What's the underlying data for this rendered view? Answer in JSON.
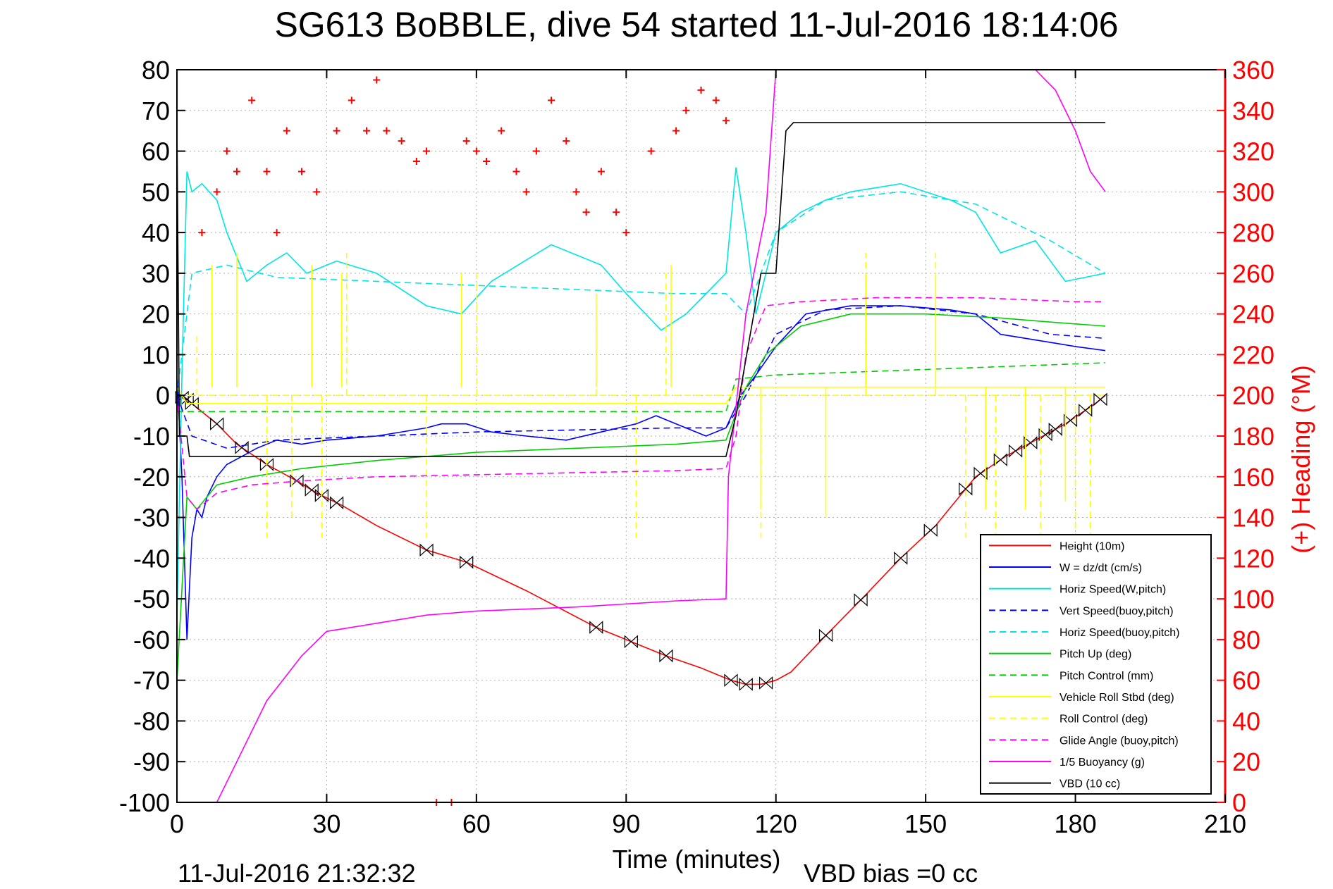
{
  "chart_data": {
    "type": "line",
    "title": "SG613 BoBBLE, dive 54 started 11-Jul-2016 18:14:06",
    "xlabel": "Time (minutes)",
    "ylabel_right": "(+) Heading (°M)",
    "xlim": [
      0,
      210
    ],
    "ylim_left": [
      -100,
      80
    ],
    "ylim_right": [
      0,
      360
    ],
    "x_ticks": [
      0,
      30,
      60,
      90,
      120,
      150,
      180,
      210
    ],
    "y_ticks_left": [
      80,
      70,
      60,
      50,
      40,
      30,
      20,
      10,
      0,
      -10,
      -20,
      -30,
      -40,
      -50,
      -60,
      -70,
      -80,
      -90,
      -100
    ],
    "y_ticks_right": [
      360,
      340,
      320,
      300,
      280,
      260,
      240,
      220,
      200,
      180,
      160,
      140,
      120,
      100,
      80,
      60,
      40,
      20,
      0
    ],
    "grid": true,
    "legend_position": "lower-right",
    "footer_left": "11-Jul-2016 21:32:32",
    "footer_right": "VBD bias =0 cc",
    "legend": [
      {
        "label": "Height (10m)",
        "color": "#ff0000",
        "dash": "solid"
      },
      {
        "label": "W = dz/dt (cm/s)",
        "color": "#0000ff",
        "dash": "solid"
      },
      {
        "label": "Horiz Speed(W,pitch)",
        "color": "#00e5e5",
        "dash": "solid"
      },
      {
        "label": "Vert Speed(buoy,pitch)",
        "color": "#0000ff",
        "dash": "dashed"
      },
      {
        "label": "Horiz Speed(buoy,pitch)",
        "color": "#00e5e5",
        "dash": "dashed"
      },
      {
        "label": "Pitch Up (deg)",
        "color": "#00cc00",
        "dash": "solid"
      },
      {
        "label": "Pitch Control (mm)",
        "color": "#00cc00",
        "dash": "dashed"
      },
      {
        "label": "Vehicle Roll Stbd (deg)",
        "color": "#ffff00",
        "dash": "solid"
      },
      {
        "label": "Roll Control (deg)",
        "color": "#ffff00",
        "dash": "dashed"
      },
      {
        "label": "Glide Angle (buoy,pitch)",
        "color": "#ff00ff",
        "dash": "dashed"
      },
      {
        "label": "1/5 Buoyancy (g)",
        "color": "#ff00ff",
        "dash": "solid"
      },
      {
        "label": "VBD (10 cc)",
        "color": "#000000",
        "dash": "solid"
      }
    ],
    "series": [
      {
        "name": "Height (10m)",
        "axis": "left",
        "x": [
          0,
          2,
          4,
          8,
          12,
          18,
          24,
          28,
          33,
          40,
          50,
          58,
          70,
          84,
          92,
          98,
          105,
          111,
          114,
          117,
          120,
          123,
          130,
          138,
          145,
          152,
          160,
          166,
          172,
          178,
          184,
          186
        ],
        "y": [
          0,
          -1,
          -3,
          -7,
          -12,
          -17,
          -21,
          -24,
          -27,
          -32,
          -38,
          -41,
          -48,
          -57,
          -61,
          -64,
          -67,
          -70,
          -71,
          -71,
          -70,
          -68,
          -59,
          -49,
          -40,
          -32,
          -20,
          -15,
          -11,
          -7,
          -2,
          0
        ],
        "markers_x": [
          1,
          2,
          3,
          8,
          13,
          18,
          24,
          27,
          29,
          32,
          50,
          58,
          84,
          91,
          98,
          111,
          114,
          118,
          130,
          137,
          145,
          151,
          158,
          161,
          165,
          168,
          171,
          174,
          176,
          179,
          182,
          185
        ]
      },
      {
        "name": "W = dz/dt (cm/s)",
        "axis": "left",
        "x": [
          0,
          1,
          2,
          3,
          4,
          5,
          6,
          8,
          10,
          13,
          16,
          20,
          25,
          30,
          40,
          50,
          53,
          58,
          63,
          70,
          78,
          85,
          92,
          96,
          100,
          106,
          110,
          113,
          116,
          120,
          126,
          135,
          145,
          155,
          160,
          165,
          170,
          175,
          180,
          186
        ],
        "y": [
          5,
          -20,
          -60,
          -35,
          -28,
          -30,
          -25,
          -20,
          -17,
          -15,
          -13,
          -11,
          -12,
          -11,
          -10,
          -8,
          -7,
          -7,
          -9,
          -10,
          -11,
          -9,
          -7,
          -5,
          -7,
          -10,
          -8,
          0,
          5,
          12,
          20,
          22,
          22,
          21,
          20,
          15,
          14,
          13,
          12,
          11
        ]
      },
      {
        "name": "Horiz Speed(W,pitch)",
        "axis": "left",
        "x": [
          0,
          1,
          2,
          3,
          5,
          8,
          10,
          14,
          18,
          22,
          26,
          32,
          40,
          50,
          57,
          63,
          75,
          85,
          90,
          97,
          102,
          110,
          112,
          114,
          116,
          120,
          125,
          130,
          135,
          145,
          155,
          160,
          165,
          172,
          178,
          186
        ],
        "y": [
          -55,
          5,
          55,
          50,
          52,
          48,
          40,
          28,
          32,
          35,
          30,
          33,
          30,
          22,
          20,
          28,
          37,
          32,
          25,
          16,
          20,
          30,
          56,
          40,
          20,
          40,
          45,
          48,
          50,
          52,
          48,
          45,
          35,
          38,
          28,
          30
        ]
      },
      {
        "name": "Vert Speed(buoy,pitch)",
        "axis": "left",
        "x": [
          0,
          3,
          10,
          20,
          40,
          60,
          80,
          100,
          110,
          114,
          120,
          130,
          145,
          160,
          175,
          186
        ],
        "y": [
          0,
          -10,
          -13,
          -11,
          -10,
          -9,
          -8.5,
          -8,
          -8,
          0,
          15,
          21,
          22,
          20,
          15,
          14
        ]
      },
      {
        "name": "Horiz Speed(buoy,pitch)",
        "axis": "left",
        "x": [
          0,
          3,
          10,
          20,
          40,
          60,
          80,
          100,
          110,
          114,
          120,
          130,
          145,
          160,
          175,
          186
        ],
        "y": [
          0,
          30,
          32,
          29,
          28,
          27,
          26,
          25,
          25,
          20,
          40,
          48,
          50,
          47,
          38,
          30
        ]
      },
      {
        "name": "Pitch Up (deg)",
        "axis": "left",
        "x": [
          0,
          2,
          4,
          8,
          15,
          25,
          40,
          60,
          80,
          100,
          110,
          114,
          118,
          125,
          135,
          150,
          165,
          175,
          186
        ],
        "y": [
          -70,
          -25,
          -28,
          -22,
          -20,
          -18,
          -16,
          -14,
          -13,
          -12,
          -11,
          2,
          10,
          17,
          20,
          20,
          19,
          18,
          17
        ]
      },
      {
        "name": "Pitch Control (mm)",
        "axis": "left",
        "x": [
          0,
          2,
          110,
          112,
          120,
          186
        ],
        "y": [
          -4,
          -4,
          -4,
          4,
          5,
          8
        ]
      },
      {
        "name": "Vehicle Roll Stbd (deg)",
        "axis": "left",
        "x": [
          0,
          2,
          110,
          112,
          186
        ],
        "y": [
          2,
          -2,
          -2,
          2,
          2
        ],
        "spikes_x": [
          7,
          12,
          27,
          33,
          57,
          84,
          99,
          117,
          130,
          138,
          152,
          162,
          170,
          178
        ],
        "spikes_y": [
          32,
          35,
          32,
          30,
          30,
          25,
          32,
          -28,
          -30,
          30,
          30,
          -28,
          -28,
          -26
        ]
      },
      {
        "name": "Roll Control (deg)",
        "axis": "left",
        "x": [
          0,
          186
        ],
        "y": [
          0,
          0
        ],
        "spikes_x": [
          4,
          18,
          23,
          29,
          34,
          50,
          60,
          84,
          92,
          98,
          117,
          138,
          152,
          158,
          164,
          173,
          180,
          183
        ],
        "spikes_y": [
          15,
          -35,
          -30,
          -35,
          35,
          -35,
          30,
          25,
          -35,
          30,
          -35,
          35,
          35,
          -35,
          -35,
          -35,
          -35,
          -35
        ]
      },
      {
        "name": "Glide Angle (buoy,pitch)",
        "axis": "left",
        "x": [
          0,
          2,
          4,
          8,
          15,
          25,
          40,
          60,
          80,
          100,
          110,
          112,
          114,
          118,
          125,
          140,
          160,
          180,
          186
        ],
        "y": [
          0,
          -25,
          -28,
          -24,
          -22,
          -21,
          -20,
          -19.5,
          -19,
          -18.5,
          -18,
          -10,
          10,
          22,
          23,
          24,
          24,
          23,
          23
        ]
      },
      {
        "name": "1/5 Buoyancy (g)",
        "axis": "left",
        "x": [
          0,
          2,
          5,
          8,
          12,
          18,
          25,
          30,
          40,
          50,
          60,
          80,
          100,
          110,
          110.5,
          114,
          118,
          120,
          124,
          130,
          140,
          150,
          160,
          168,
          172,
          176,
          180,
          183,
          186
        ],
        "y": [
          -100,
          -100,
          -100,
          -100,
          -90,
          -75,
          -64,
          -58,
          -56,
          -54,
          -53,
          -52,
          -50.5,
          -50,
          -20,
          20,
          45,
          80,
          80,
          80,
          80,
          80,
          80,
          80,
          80,
          75,
          65,
          55,
          50
        ]
      },
      {
        "name": "VBD (10 cc)",
        "axis": "left",
        "x": [
          0,
          0.5,
          2,
          2.5,
          110,
          112,
          117,
          120,
          122,
          123.5,
          186
        ],
        "y": [
          67,
          -10,
          -10,
          -15,
          -15,
          -5,
          30,
          30,
          65,
          67,
          67
        ]
      },
      {
        "name": "(+) Heading (°M)",
        "axis": "right",
        "color": "#ff0000",
        "marker": "+",
        "x": [
          5,
          8,
          10,
          12,
          15,
          18,
          20,
          22,
          25,
          28,
          32,
          35,
          38,
          40,
          42,
          45,
          48,
          50,
          52,
          55,
          58,
          60,
          62,
          65,
          68,
          70,
          72,
          75,
          78,
          80,
          82,
          85,
          88,
          90,
          95,
          100,
          102,
          105,
          108,
          110
        ],
        "y": [
          280,
          300,
          320,
          310,
          345,
          310,
          280,
          330,
          310,
          300,
          330,
          345,
          330,
          355,
          330,
          325,
          315,
          320,
          0,
          0,
          325,
          320,
          315,
          330,
          310,
          300,
          320,
          345,
          325,
          300,
          290,
          310,
          290,
          280,
          320,
          330,
          340,
          350,
          345,
          335
        ]
      }
    ]
  }
}
